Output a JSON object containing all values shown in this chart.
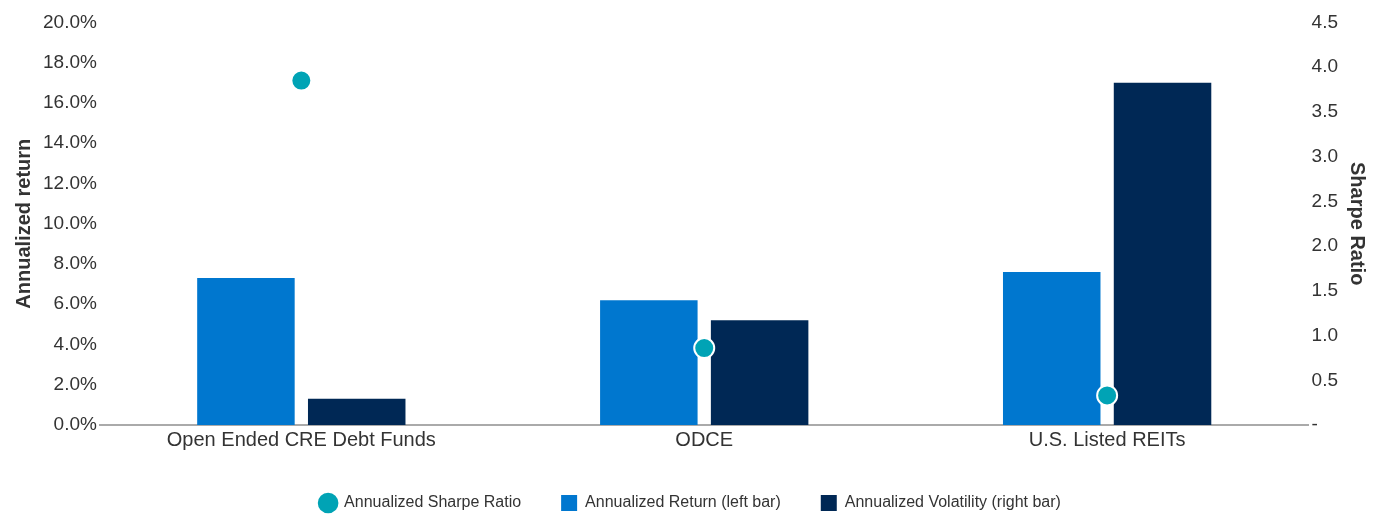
{
  "chart_data": {
    "type": "bar",
    "categories": [
      "Open Ended CRE Debt Funds",
      "ODCE",
      "U.S. Listed REITs"
    ],
    "ylabel": "Annualized return",
    "y2label": "Sharpe Ratio",
    "ylim": [
      0,
      20
    ],
    "yticks": [
      {
        "value": 0,
        "label": "0.0%"
      },
      {
        "value": 2,
        "label": "2.0%"
      },
      {
        "value": 4,
        "label": "4.0%"
      },
      {
        "value": 6,
        "label": "6.0%"
      },
      {
        "value": 8,
        "label": "8.0%"
      },
      {
        "value": 10,
        "label": "10.0%"
      },
      {
        "value": 12,
        "label": "12.0%"
      },
      {
        "value": 14,
        "label": "14.0%"
      },
      {
        "value": 16,
        "label": "16.0%"
      },
      {
        "value": 18,
        "label": "18.0%"
      },
      {
        "value": 20,
        "label": "20.0%"
      }
    ],
    "y2lim": [
      0,
      4.5
    ],
    "y2ticks": [
      {
        "value": 0,
        "label": "-"
      },
      {
        "value": 0.5,
        "label": "0.5"
      },
      {
        "value": 1,
        "label": "1.0"
      },
      {
        "value": 1.5,
        "label": "1.5"
      },
      {
        "value": 2,
        "label": "2.0"
      },
      {
        "value": 2.5,
        "label": "2.5"
      },
      {
        "value": 3,
        "label": "3.0"
      },
      {
        "value": 3.5,
        "label": "3.5"
      },
      {
        "value": 4,
        "label": "4.0"
      },
      {
        "value": 4.5,
        "label": "4.5"
      }
    ],
    "series": [
      {
        "name": "Annualized Return (left bar)",
        "color": "#0077cf",
        "values": [
          7.3,
          6.2,
          7.6
        ]
      },
      {
        "name": "Annualized Volatility (right bar)",
        "color": "#002855",
        "values": [
          1.3,
          5.2,
          17.0
        ]
      },
      {
        "name": "Annualized Sharpe Ratio",
        "type": "scatter",
        "axis": "y2",
        "color": "#00a3b5",
        "values": [
          3.85,
          0.86,
          0.33
        ]
      }
    ],
    "grid": false,
    "legend": "bottom",
    "marker": "circle"
  }
}
